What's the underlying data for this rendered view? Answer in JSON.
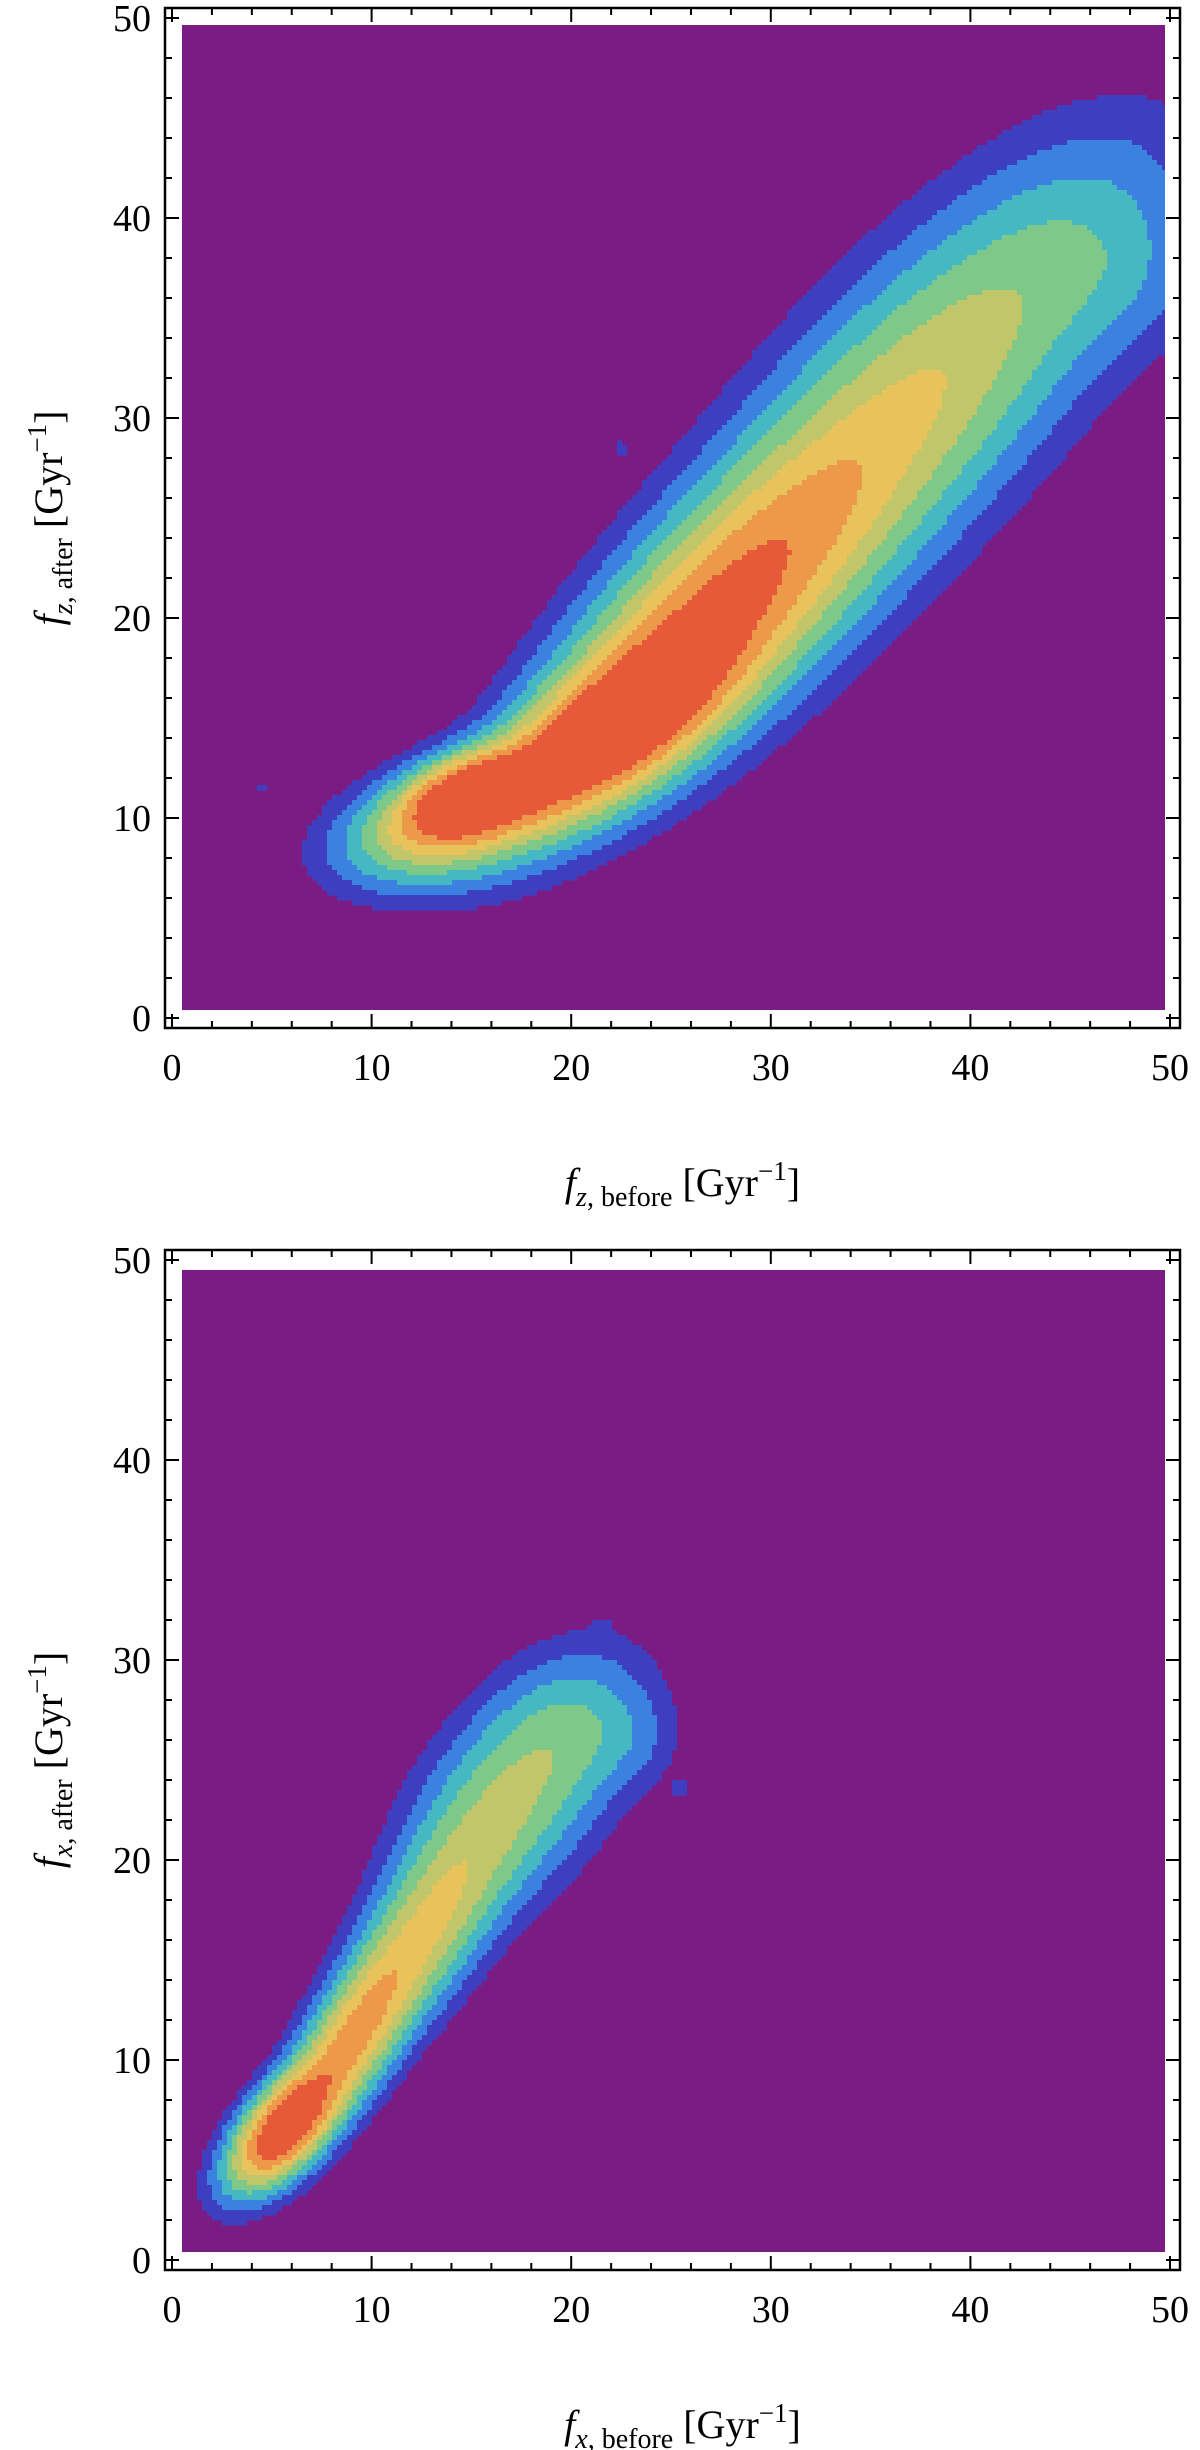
{
  "chart_data": [
    {
      "type": "heatmap",
      "subtype": "density contour",
      "xlabel": {
        "var": "f",
        "sub_italic": "z",
        "sub_rest": ", before",
        "unit": "[Gyr",
        "exp": "−1",
        "close": "]"
      },
      "ylabel": {
        "var": "f",
        "sub_italic": "z",
        "sub_rest": ", after",
        "unit": "[Gyr",
        "exp": "−1",
        "close": "]"
      },
      "xlim": [
        0,
        50
      ],
      "ylim": [
        0,
        50
      ],
      "xticks": [
        0,
        10,
        20,
        30,
        40,
        50
      ],
      "yticks": [
        0,
        10,
        20,
        30,
        40,
        50
      ],
      "xtick_labels": [
        "0",
        "10",
        "20",
        "30",
        "40",
        "50"
      ],
      "ytick_labels": [
        "0",
        "10",
        "20",
        "30",
        "40",
        "50"
      ],
      "grid": false,
      "colormap": [
        "#7b1c85",
        "#3d3fc0",
        "#3b82e0",
        "#46b8c4",
        "#7ec88a",
        "#c2c66a",
        "#e8c25a",
        "#ec9a4a",
        "#e65a3a"
      ],
      "background_color": "#7b1c85",
      "blobs": [
        {
          "x": 13,
          "y": 9.5,
          "sx": 3.0,
          "sy": 1.6,
          "angle": 15,
          "w": 0.45
        },
        {
          "x": 15,
          "y": 11.2,
          "sx": 2.2,
          "sy": 1.2,
          "angle": 20,
          "w": 0.95
        },
        {
          "x": 21.5,
          "y": 14.0,
          "sx": 4.5,
          "sy": 1.8,
          "angle": 35,
          "w": 1.0
        },
        {
          "x": 26,
          "y": 19,
          "sx": 6.5,
          "sy": 2.6,
          "angle": 45,
          "w": 0.62
        },
        {
          "x": 32,
          "y": 25,
          "sx": 7.5,
          "sy": 3.2,
          "angle": 47,
          "w": 0.4
        },
        {
          "x": 39,
          "y": 33,
          "sx": 6.5,
          "sy": 3.5,
          "angle": 45,
          "w": 0.28
        },
        {
          "x": 45,
          "y": 39,
          "sx": 5.0,
          "sy": 3.2,
          "angle": 45,
          "w": 0.12
        },
        {
          "x": 48,
          "y": 37,
          "sx": 2.5,
          "sy": 2.5,
          "angle": 0,
          "w": 0.06
        },
        {
          "x": 4.5,
          "y": 11.5,
          "sx": 0.35,
          "sy": 0.35,
          "angle": 0,
          "w": 0.05
        },
        {
          "x": 22.5,
          "y": 28.5,
          "sx": 0.35,
          "sy": 0.35,
          "angle": 0,
          "w": 0.05
        }
      ]
    },
    {
      "type": "heatmap",
      "subtype": "density contour",
      "xlabel": {
        "var": "f",
        "sub_italic": "x",
        "sub_rest": ", before",
        "unit": "[Gyr",
        "exp": "−1",
        "close": "]"
      },
      "ylabel": {
        "var": "f",
        "sub_italic": "x",
        "sub_rest": ", after",
        "unit": "[Gyr",
        "exp": "−1",
        "close": "]"
      },
      "xlim": [
        0,
        50
      ],
      "ylim": [
        0,
        50
      ],
      "xticks": [
        0,
        10,
        20,
        30,
        40,
        50
      ],
      "yticks": [
        0,
        10,
        20,
        30,
        40,
        50
      ],
      "xtick_labels": [
        "0",
        "10",
        "20",
        "30",
        "40",
        "50"
      ],
      "ytick_labels": [
        "0",
        "10",
        "20",
        "30",
        "40",
        "50"
      ],
      "grid": false,
      "colormap": [
        "#7b1c85",
        "#3d3fc0",
        "#3b82e0",
        "#46b8c4",
        "#7ec88a",
        "#c2c66a",
        "#e8c25a",
        "#ec9a4a",
        "#e65a3a"
      ],
      "background_color": "#7b1c85",
      "blobs": [
        {
          "x": 5.5,
          "y": 6.5,
          "sx": 2.2,
          "sy": 1.1,
          "angle": 50,
          "w": 1.0
        },
        {
          "x": 9,
          "y": 11,
          "sx": 3.5,
          "sy": 1.3,
          "angle": 58,
          "w": 0.62
        },
        {
          "x": 13,
          "y": 17,
          "sx": 3.8,
          "sy": 1.7,
          "angle": 58,
          "w": 0.42
        },
        {
          "x": 17,
          "y": 23,
          "sx": 3.8,
          "sy": 2.4,
          "angle": 50,
          "w": 0.32
        },
        {
          "x": 20,
          "y": 27,
          "sx": 2.8,
          "sy": 2.2,
          "angle": 40,
          "w": 0.15
        },
        {
          "x": 23,
          "y": 26,
          "sx": 1.6,
          "sy": 1.5,
          "angle": 0,
          "w": 0.06
        },
        {
          "x": 21.5,
          "y": 31.5,
          "sx": 0.35,
          "sy": 0.35,
          "angle": 0,
          "w": 0.05
        },
        {
          "x": 25.5,
          "y": 23.5,
          "sx": 0.4,
          "sy": 0.4,
          "angle": 0,
          "w": 0.05
        }
      ]
    }
  ]
}
